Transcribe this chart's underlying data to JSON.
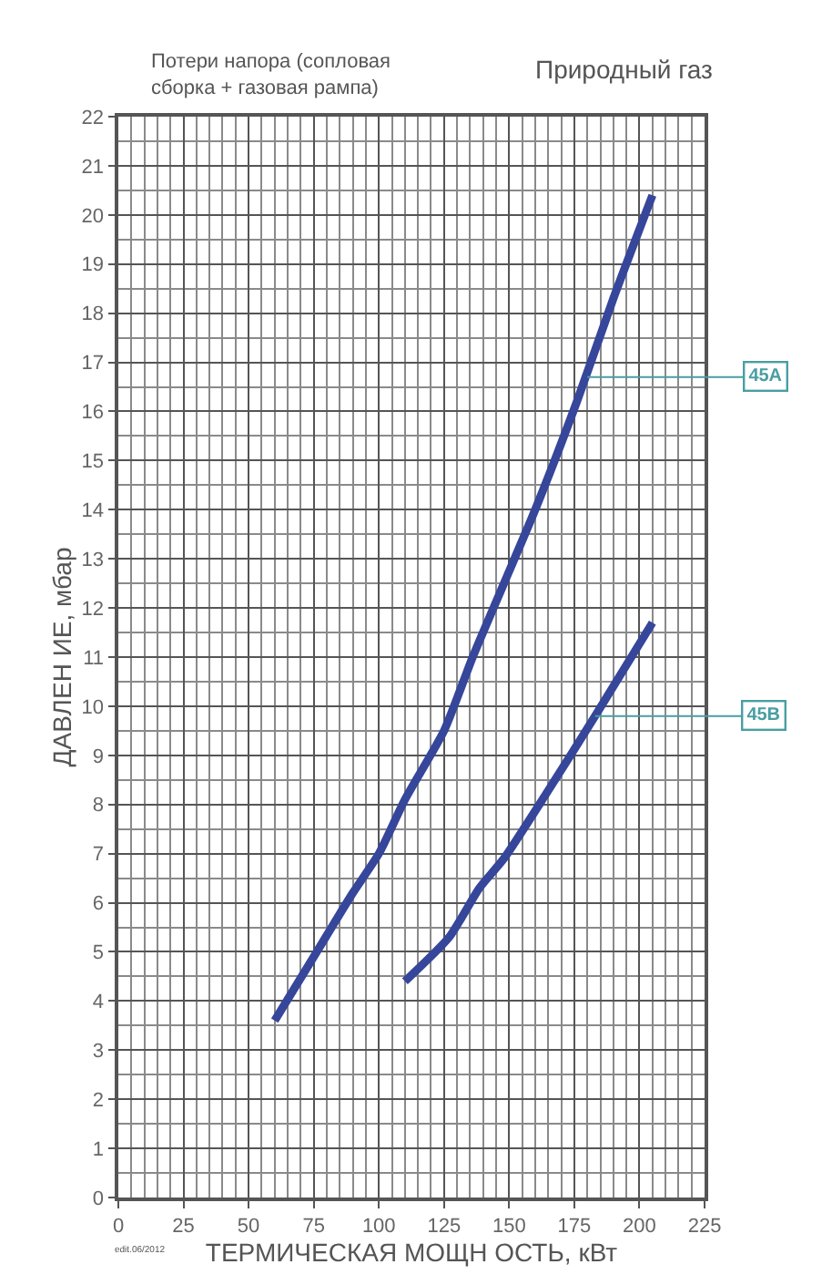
{
  "chart_data": {
    "type": "line",
    "title": "Природный газ",
    "subtitle": "Потери напора (сопловая\nсборка + газовая рампа)",
    "xlabel": "ТЕРМИЧЕСКАЯ МОЩН ОСТЬ, кВт",
    "ylabel": "ДАВЛЕН ИЕ, мбар",
    "series": [
      {
        "color": "#36469a",
        "x": [
          60,
          75,
          90,
          100,
          110,
          125,
          136,
          148,
          160,
          176,
          190,
          205
        ],
        "values": [
          3.6,
          4.9,
          6.2,
          7.0,
          8.1,
          9.5,
          11.0,
          12.5,
          14.0,
          16.2,
          18.3,
          20.4
        ]
      },
      {
        "color": "#36469a",
        "x": [
          110,
          127,
          138.6,
          148,
          164,
          183,
          205
        ],
        "values": [
          4.4,
          5.3,
          6.3,
          6.9,
          8.2,
          9.8,
          11.7
        ]
      }
    ],
    "annotations": [
      {
        "text": "45A",
        "x": 180,
        "y": 16.7
      },
      {
        "text": "45B",
        "x": 183,
        "y": 9.8
      },
      "edit.06/2012"
    ],
    "xlim": [
      0,
      225
    ],
    "xticks": [
      0,
      25,
      50,
      75,
      100,
      125,
      150,
      175,
      200,
      225
    ],
    "ylim": [
      0,
      22
    ],
    "yticks": [
      0,
      1,
      2,
      3,
      4,
      5,
      6,
      7,
      8,
      9,
      10,
      11,
      12,
      13,
      14,
      15,
      16,
      17,
      18,
      19,
      20,
      21,
      22
    ],
    "grid": true,
    "marker": "none",
    "line_style": "solid"
  }
}
